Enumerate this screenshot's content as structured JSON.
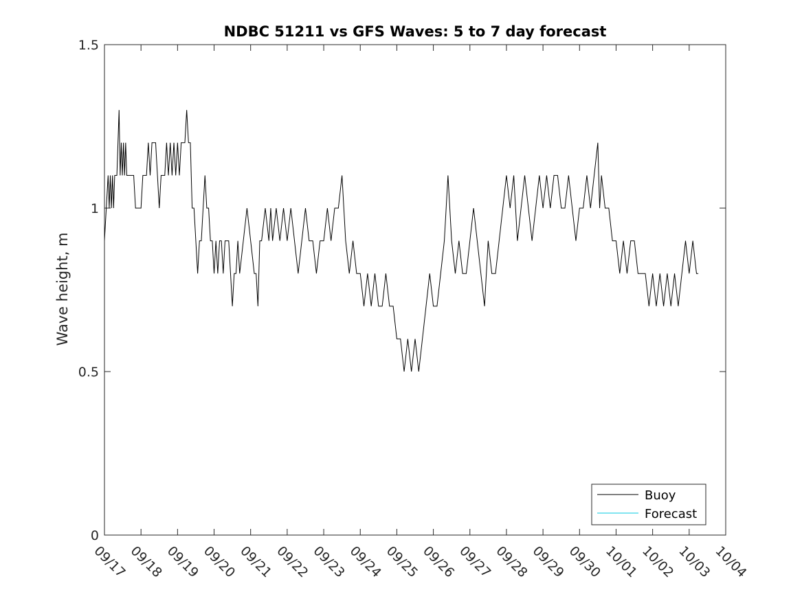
{
  "chart_data": {
    "type": "line",
    "title": "NDBC 51211 vs GFS Waves: 5 to 7 day forecast",
    "xlabel": "",
    "ylabel": "Wave height, m",
    "ylim": [
      0,
      1.5
    ],
    "yticks": [
      0,
      0.5,
      1,
      1.5
    ],
    "ytick_labels": [
      "0",
      "0.5",
      "1",
      "1.5"
    ],
    "xlim": [
      0,
      17
    ],
    "xtick_labels": [
      "09/17",
      "09/18",
      "09/19",
      "09/20",
      "09/21",
      "09/22",
      "09/23",
      "09/24",
      "09/25",
      "09/26",
      "09/27",
      "09/28",
      "09/29",
      "09/30",
      "10/01",
      "10/02",
      "10/03",
      "10/04"
    ],
    "legend_position": "bottom-right",
    "series": [
      {
        "name": "Buoy",
        "color": "#000000",
        "x": [
          0.0,
          0.05,
          0.1,
          0.13,
          0.16,
          0.19,
          0.22,
          0.25,
          0.28,
          0.31,
          0.34,
          0.37,
          0.4,
          0.43,
          0.46,
          0.49,
          0.52,
          0.55,
          0.58,
          0.61,
          0.65,
          0.75,
          0.8,
          0.85,
          0.9,
          0.95,
          1.0,
          1.05,
          1.1,
          1.15,
          1.2,
          1.25,
          1.3,
          1.35,
          1.4,
          1.45,
          1.5,
          1.55,
          1.6,
          1.65,
          1.7,
          1.75,
          1.8,
          1.85,
          1.9,
          1.95,
          2.0,
          2.05,
          2.1,
          2.15,
          2.2,
          2.25,
          2.3,
          2.35,
          2.4,
          2.45,
          2.5,
          2.55,
          2.6,
          2.65,
          2.7,
          2.75,
          2.8,
          2.85,
          2.9,
          2.95,
          3.0,
          3.05,
          3.1,
          3.15,
          3.2,
          3.25,
          3.3,
          3.4,
          3.5,
          3.55,
          3.6,
          3.65,
          3.7,
          3.8,
          3.9,
          4.0,
          4.1,
          4.15,
          4.2,
          4.25,
          4.3,
          4.4,
          4.5,
          4.55,
          4.6,
          4.7,
          4.8,
          4.9,
          5.0,
          5.1,
          5.2,
          5.3,
          5.4,
          5.5,
          5.6,
          5.7,
          5.8,
          5.9,
          6.0,
          6.1,
          6.2,
          6.3,
          6.4,
          6.5,
          6.6,
          6.7,
          6.8,
          6.9,
          7.0,
          7.1,
          7.2,
          7.3,
          7.4,
          7.5,
          7.6,
          7.7,
          7.8,
          7.9,
          8.0,
          8.1,
          8.2,
          8.3,
          8.4,
          8.5,
          8.6,
          8.7,
          8.8,
          8.9,
          9.0,
          9.1,
          9.2,
          9.3,
          9.4,
          9.5,
          9.6,
          9.7,
          9.8,
          9.9,
          10.0,
          10.1,
          10.2,
          10.3,
          10.4,
          10.5,
          10.6,
          10.7,
          10.8,
          10.9,
          11.0,
          11.1,
          11.2,
          11.3,
          11.4,
          11.5,
          11.6,
          11.7,
          11.8,
          11.9,
          12.0,
          12.1,
          12.2,
          12.3,
          12.4,
          12.5,
          12.6,
          12.7,
          12.8,
          12.9,
          13.0,
          13.1,
          13.2,
          13.3,
          13.4,
          13.5,
          13.55,
          13.6,
          13.7,
          13.8,
          13.9,
          14.0,
          14.1,
          14.2,
          14.3,
          14.4,
          14.5,
          14.6,
          14.7,
          14.8,
          14.9,
          15.0,
          15.1,
          15.2,
          15.3,
          15.4,
          15.5,
          15.6,
          15.7,
          15.8,
          15.9,
          16.0,
          16.1,
          16.2,
          16.25
        ],
        "values": [
          0.9,
          1.0,
          1.1,
          1.0,
          1.1,
          1.0,
          1.1,
          1.0,
          1.1,
          1.1,
          1.1,
          1.2,
          1.3,
          1.1,
          1.2,
          1.1,
          1.2,
          1.1,
          1.2,
          1.1,
          1.1,
          1.1,
          1.1,
          1.0,
          1.0,
          1.0,
          1.0,
          1.1,
          1.1,
          1.1,
          1.2,
          1.1,
          1.2,
          1.2,
          1.2,
          1.1,
          1.0,
          1.1,
          1.1,
          1.1,
          1.2,
          1.1,
          1.2,
          1.1,
          1.2,
          1.1,
          1.2,
          1.1,
          1.2,
          1.2,
          1.2,
          1.3,
          1.2,
          1.2,
          1.0,
          1.0,
          0.9,
          0.8,
          0.9,
          0.9,
          1.0,
          1.1,
          1.0,
          1.0,
          0.9,
          0.9,
          0.8,
          0.9,
          0.8,
          0.9,
          0.9,
          0.8,
          0.9,
          0.9,
          0.7,
          0.8,
          0.8,
          0.9,
          0.8,
          0.9,
          1.0,
          0.9,
          0.8,
          0.8,
          0.7,
          0.9,
          0.9,
          1.0,
          0.9,
          1.0,
          0.9,
          1.0,
          0.9,
          1.0,
          0.9,
          1.0,
          0.9,
          0.8,
          0.9,
          1.0,
          0.9,
          0.9,
          0.8,
          0.9,
          0.9,
          1.0,
          0.9,
          1.0,
          1.0,
          1.1,
          0.9,
          0.8,
          0.9,
          0.8,
          0.8,
          0.7,
          0.8,
          0.7,
          0.8,
          0.7,
          0.7,
          0.8,
          0.7,
          0.7,
          0.6,
          0.6,
          0.5,
          0.6,
          0.5,
          0.6,
          0.5,
          0.6,
          0.7,
          0.8,
          0.7,
          0.7,
          0.8,
          0.9,
          1.1,
          0.9,
          0.8,
          0.9,
          0.8,
          0.8,
          0.9,
          1.0,
          0.9,
          0.8,
          0.7,
          0.9,
          0.8,
          0.8,
          0.9,
          1.0,
          1.1,
          1.0,
          1.1,
          0.9,
          1.0,
          1.1,
          1.0,
          0.9,
          1.0,
          1.1,
          1.0,
          1.1,
          1.0,
          1.1,
          1.1,
          1.0,
          1.0,
          1.1,
          1.0,
          0.9,
          1.0,
          1.0,
          1.1,
          1.0,
          1.1,
          1.2,
          1.0,
          1.1,
          1.0,
          1.0,
          0.9,
          0.9,
          0.8,
          0.9,
          0.8,
          0.9,
          0.9,
          0.8,
          0.8,
          0.8,
          0.7,
          0.8,
          0.7,
          0.8,
          0.7,
          0.8,
          0.7,
          0.8,
          0.7,
          0.8,
          0.9,
          0.8,
          0.9,
          0.8,
          0.8
        ]
      },
      {
        "name": "Forecast",
        "color": "#00c8e0",
        "x": [],
        "values": []
      }
    ]
  }
}
